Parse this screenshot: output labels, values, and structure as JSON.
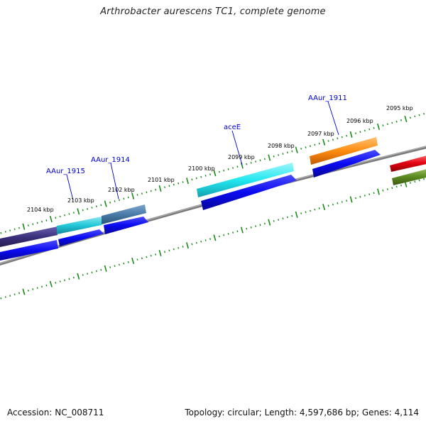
{
  "title": "Arthrobacter aurescens TC1, complete genome",
  "footer": {
    "accession": "Accession: NC_008711",
    "topology": "Topology: circular; Length: 4,597,686 bp; Genes: 4,114"
  },
  "colors": {
    "background": "#ffffff",
    "backbone": "#808080",
    "tick": "#1a8a1a",
    "label_link": "#0000cc",
    "cds": "#0a0af0"
  },
  "kbp_labels": [
    "2104 kbp",
    "2103 kbp",
    "2102 kbp",
    "2101 kbp",
    "2100 kbp",
    "2099 kbp",
    "2098 kbp",
    "2097 kbp",
    "2096 kbp",
    "2095 kbp"
  ],
  "gene_labels": [
    "AAur_1915",
    "AAur_1914",
    "aceE",
    "AAur_1911"
  ],
  "genes": [
    {
      "name": "AAur_1915",
      "color": "#20c8d8"
    },
    {
      "name": "AAur_1914",
      "color": "#4a7aa8"
    },
    {
      "name": "aceE",
      "color": "#22e8f0"
    },
    {
      "name": "AAur_1911",
      "color": "#ff8c10"
    },
    {
      "name": "",
      "color": "#3a2f7a"
    },
    {
      "name": "",
      "color": "#e00010"
    },
    {
      "name": "",
      "color": "#5a8a20"
    }
  ]
}
